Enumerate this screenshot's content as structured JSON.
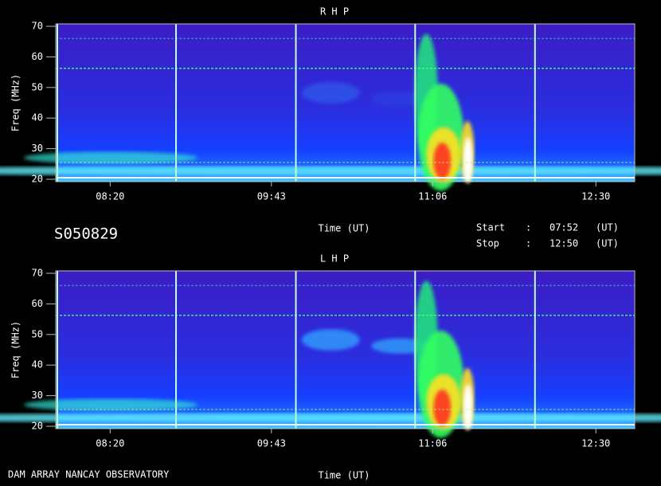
{
  "chart_data": [
    {
      "type": "spectrogram",
      "title": "R H P",
      "ylabel": "Freq (MHz)",
      "xlabel": "Time (UT)",
      "ylim": [
        20,
        70
      ],
      "yticks": [
        20,
        30,
        40,
        50,
        60,
        70
      ],
      "xlim": [
        "07:52",
        "12:50"
      ],
      "xticks": [
        "08:20",
        "09:43",
        "11:06",
        "12:30"
      ]
    },
    {
      "type": "spectrogram",
      "title": "L H P",
      "ylabel": "Freq (MHz)",
      "xlabel": "Time (UT)",
      "ylim": [
        20,
        70
      ],
      "yticks": [
        20,
        30,
        40,
        50,
        60,
        70
      ],
      "xlim": [
        "07:52",
        "12:50"
      ],
      "xticks": [
        "08:20",
        "09:43",
        "11:06",
        "12:30"
      ]
    }
  ],
  "info": {
    "id": "S050829",
    "start_label": "Start",
    "stop_label": "Stop",
    "separator": ":",
    "start": "07:52",
    "stop": "12:50",
    "unit": "(UT)"
  },
  "footer": {
    "observatory": "DAM ARRAY  NANCAY OBSERVATORY"
  }
}
